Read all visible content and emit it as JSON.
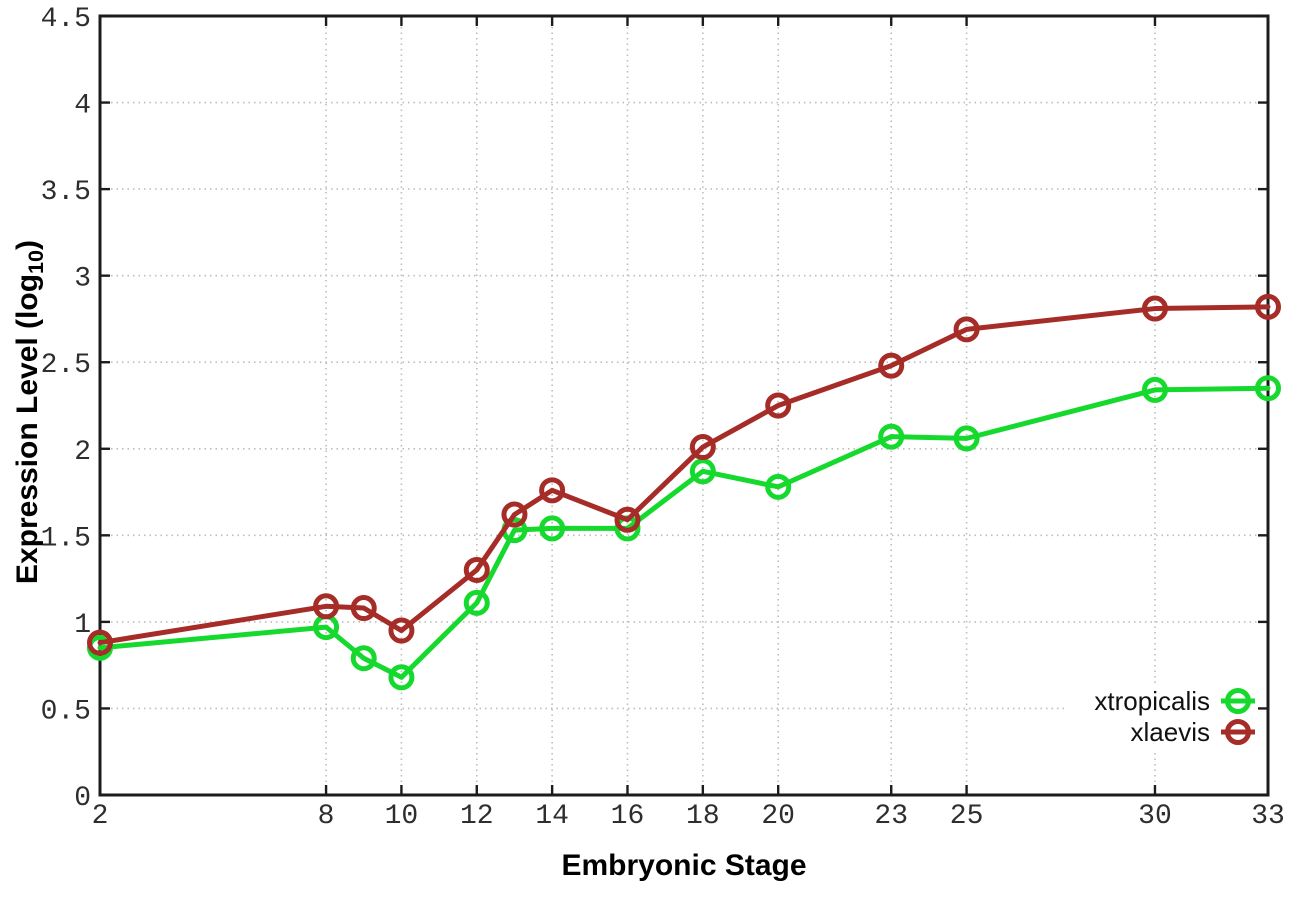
{
  "figure": {
    "xlabel": "Embryonic Stage",
    "ylabel": {
      "main": "Expression Level (log",
      "sub": "10",
      "close": ")"
    }
  },
  "colors": {
    "xtropicalis": "#16d92e",
    "xlaevis": "#a62c28",
    "grid": "#bdbdbd",
    "axis": "#1c1c1c",
    "tick_label": "#2e2e2e",
    "legend_text": "#111111",
    "background": "#ffffff"
  },
  "legend": {
    "position": "inside-bottom-right",
    "entries": [
      {
        "label": "xtropicalis"
      },
      {
        "label": "xlaevis"
      }
    ]
  },
  "chart_data": {
    "type": "line",
    "title": "",
    "xlabel": "Embryonic Stage",
    "ylabel": "Expression Level (log10)",
    "x": [
      2,
      8,
      9,
      10,
      12,
      13,
      14,
      16,
      18,
      20,
      23,
      25,
      30,
      33
    ],
    "series": [
      {
        "name": "xtropicalis",
        "color": "#16d92e",
        "values": [
          0.85,
          0.97,
          0.79,
          0.68,
          1.11,
          1.53,
          1.54,
          1.54,
          1.87,
          1.78,
          2.07,
          2.06,
          2.34,
          2.35
        ]
      },
      {
        "name": "xlaevis",
        "color": "#a62c28",
        "values": [
          0.88,
          1.09,
          1.08,
          0.95,
          1.3,
          1.62,
          1.76,
          1.59,
          2.01,
          2.25,
          2.48,
          2.69,
          2.81,
          2.82
        ]
      }
    ],
    "xticks": [
      2,
      8,
      10,
      12,
      14,
      16,
      18,
      20,
      23,
      25,
      30,
      33
    ],
    "yticks": [
      0,
      0.5,
      1,
      1.5,
      2,
      2.5,
      3,
      3.5,
      4,
      4.5
    ],
    "xlim": [
      2,
      33
    ],
    "ylim": [
      0,
      4.5
    ],
    "grid": true,
    "grid_style": "dotted",
    "legend_position": "inside bottom-right",
    "marker": "open-circle"
  }
}
